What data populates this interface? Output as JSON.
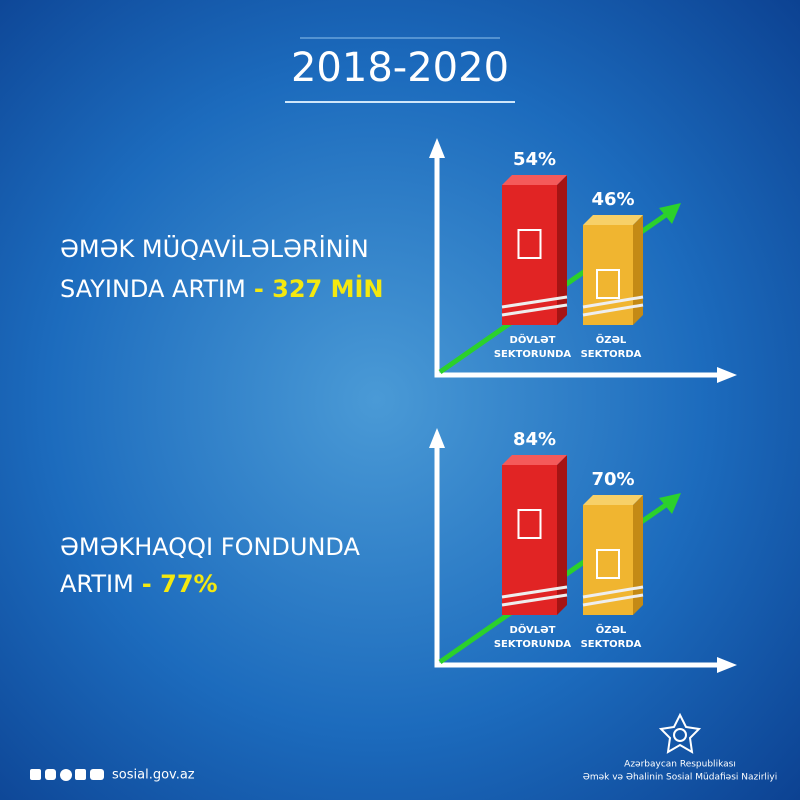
{
  "header": {
    "title": "2018-2020"
  },
  "panels": [
    {
      "label_lines": [
        "ƏMƏK MÜQAVİLƏLƏRİNİN",
        "SAYINDA ARTIM"
      ],
      "highlight": "- 327 MİN",
      "bars": [
        {
          "value_label": "54%",
          "caption_lines": [
            "DÖVLƏT",
            "SEKTORUNDA"
          ]
        },
        {
          "value_label": "46%",
          "caption_lines": [
            "ÖZƏL",
            "SEKTORDA"
          ]
        }
      ]
    },
    {
      "label_lines": [
        "ƏMƏKHAQQI FONDUNDA",
        "ARTIM"
      ],
      "highlight": "- 77%",
      "bars": [
        {
          "value_label": "84%",
          "caption_lines": [
            "DÖVLƏT",
            "SEKTORUNDA"
          ]
        },
        {
          "value_label": "70%",
          "caption_lines": [
            "ÖZƏL",
            "SEKTORDA"
          ]
        }
      ]
    }
  ],
  "footer": {
    "website": "sosial.gov.az",
    "org_lines": [
      "Azərbaycan Respublikası",
      "Əmək və Əhalinin Sosial Müdafiəsi Nazirliyi"
    ]
  }
}
